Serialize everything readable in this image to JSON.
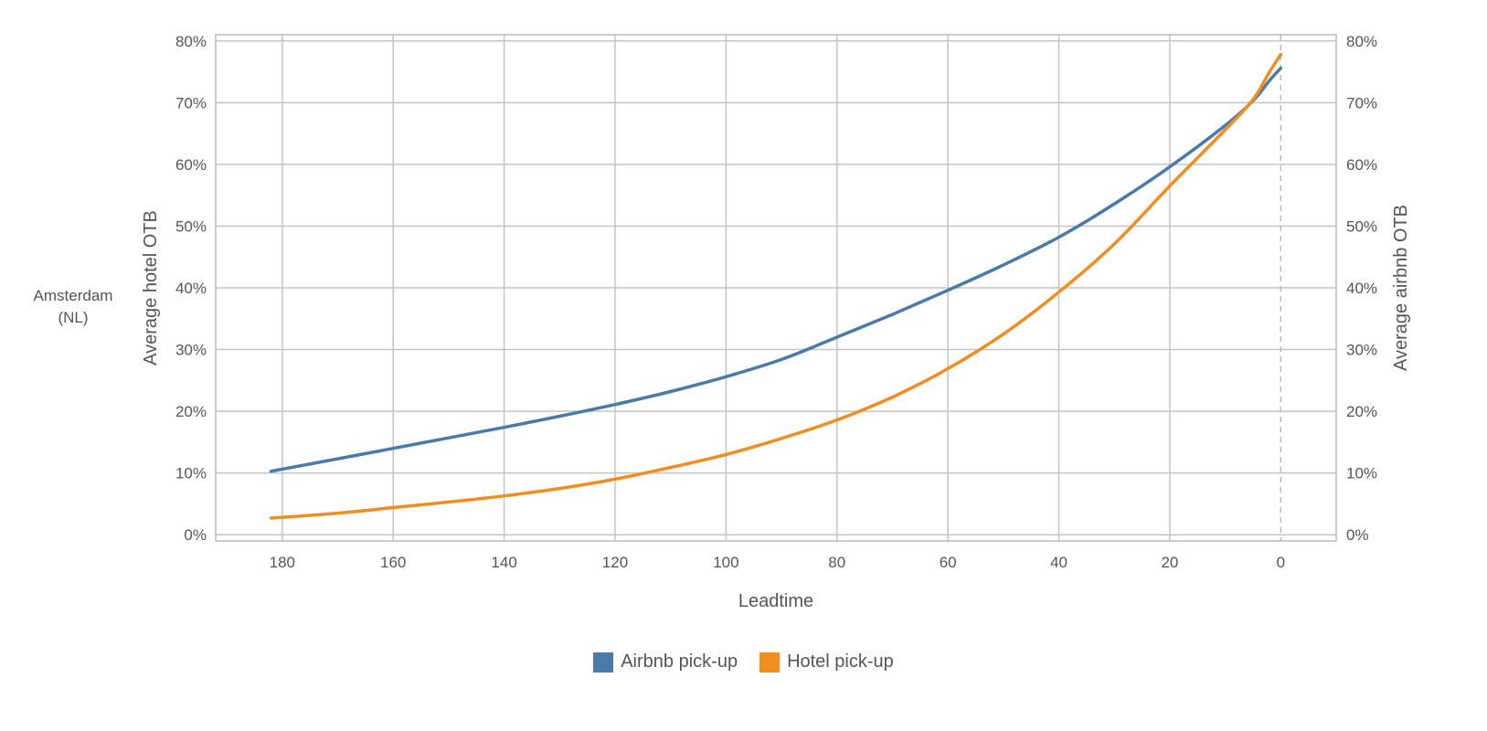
{
  "row_label_lines": [
    "Amsterdam",
    "(NL)"
  ],
  "chart_data": {
    "type": "line",
    "xlabel": "Leadtime",
    "ylabel_left": "Average hotel OTB",
    "ylabel_right": "Average airbnb OTB",
    "xlim": [
      192,
      -10
    ],
    "ylim": [
      -1,
      81
    ],
    "x_ticks": [
      180,
      160,
      140,
      120,
      100,
      80,
      60,
      40,
      20,
      0
    ],
    "y_ticks": [
      0,
      10,
      20,
      30,
      40,
      50,
      60,
      70,
      80
    ],
    "y_tick_labels": [
      "0%",
      "10%",
      "20%",
      "30%",
      "40%",
      "50%",
      "60%",
      "70%",
      "80%"
    ],
    "grid": true,
    "reference_line_x": 0,
    "legend_position": "bottom",
    "series": [
      {
        "name": "Airbnb pick-up",
        "color": "#4a7aaa",
        "x": [
          182,
          170,
          160,
          150,
          140,
          130,
          120,
          110,
          100,
          90,
          80,
          70,
          60,
          50,
          40,
          30,
          20,
          10,
          5,
          2,
          0
        ],
        "y": [
          10.3,
          12.3,
          14.0,
          15.7,
          17.4,
          19.2,
          21.1,
          23.2,
          25.6,
          28.4,
          32.0,
          35.7,
          39.6,
          43.7,
          48.2,
          53.6,
          59.6,
          66.3,
          70.3,
          73.6,
          75.6
        ]
      },
      {
        "name": "Hotel pick-up",
        "color": "#f28d1f",
        "x": [
          182,
          170,
          160,
          150,
          140,
          130,
          120,
          110,
          100,
          90,
          80,
          70,
          60,
          50,
          40,
          30,
          20,
          10,
          5,
          2,
          0
        ],
        "y": [
          2.7,
          3.5,
          4.4,
          5.3,
          6.3,
          7.5,
          9.0,
          10.9,
          13.0,
          15.6,
          18.6,
          22.3,
          26.9,
          32.5,
          39.3,
          47.1,
          56.5,
          65.6,
          70.5,
          75.0,
          77.8
        ]
      }
    ]
  }
}
